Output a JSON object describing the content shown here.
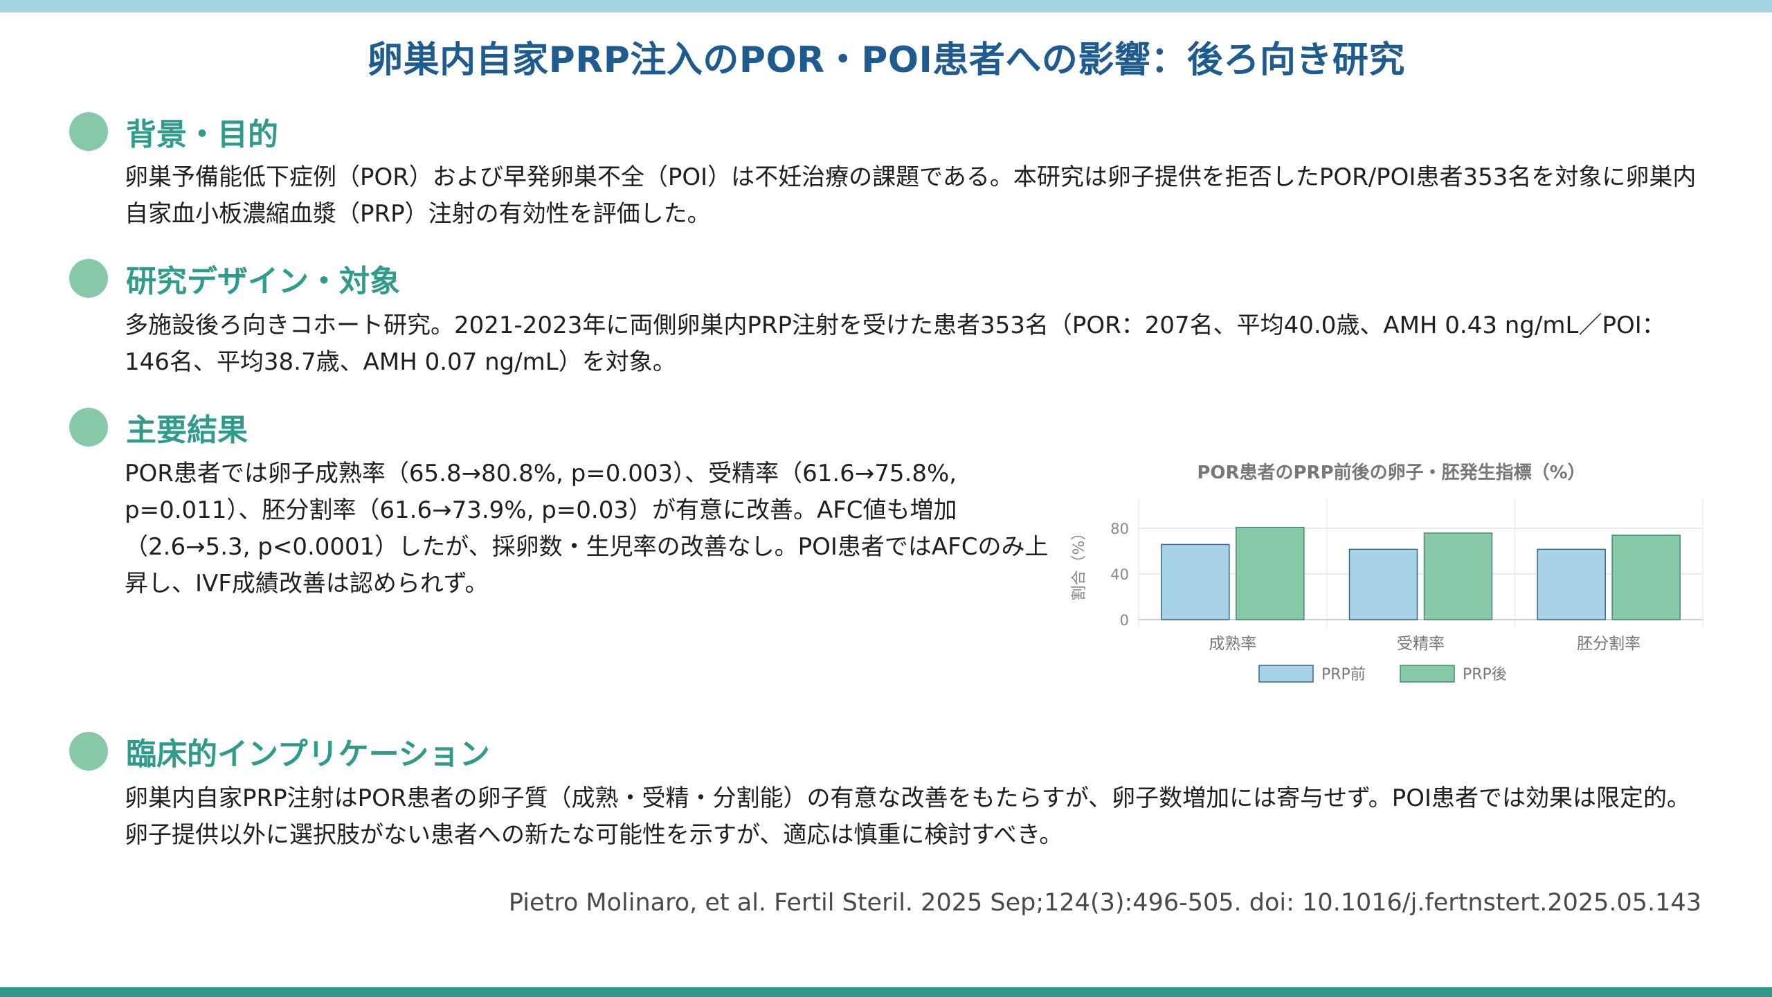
{
  "title": "卵巣内自家PRP注入のPOR・POI患者への影響：後ろ向き研究",
  "sections": {
    "background": {
      "heading": "背景・目的",
      "text": "卵巣予備能低下症例（POR）および早発卵巣不全（POI）は不妊治療の課題である。本研究は卵子提供を拒否したPOR/POI患者353名を対象に卵巣内自家血小板濃縮血漿（PRP）注射の有効性を評価した。"
    },
    "design": {
      "heading": "研究デザイン・対象",
      "text": "多施設後ろ向きコホート研究。2021-2023年に両側卵巣内PRP注射を受けた患者353名（POR：207名、平均40.0歳、AMH 0.43 ng/mL／POI：146名、平均38.7歳、AMH 0.07 ng/mL）を対象。"
    },
    "results": {
      "heading": "主要結果",
      "text": "POR患者では卵子成熟率（65.8→80.8%, p=0.003）、受精率（61.6→75.8%, p=0.011）、胚分割率（61.6→73.9%, p=0.03）が有意に改善。AFC値も増加（2.6→5.3, p<0.0001）したが、採卵数・生児率の改善なし。POI患者ではAFCのみ上昇し、IVF成績改善は認められず。"
    },
    "implications": {
      "heading": "臨床的インプリケーション",
      "text": "卵巣内自家PRP注射はPOR患者の卵子質（成熟・受精・分割能）の有意な改善をもたらすが、卵子数増加には寄与せず。POI患者では効果は限定的。卵子提供以外に選択肢がない患者への新たな可能性を示すが、適応は慎重に検討すべき。"
    }
  },
  "citation": "Pietro Molinaro, et al. Fertil Steril. 2025 Sep;124(3):496-505. doi: 10.1016/j.fertnstert.2025.05.143",
  "colors": {
    "title": "#1e5b8f",
    "section_heading": "#2f9b8a",
    "bullet": "#86c8a8",
    "top_bar": "#a6d3e3",
    "bottom_bar": "#2b9a8a",
    "series_before": "#a8d3e6",
    "series_after": "#86c8a8"
  },
  "chart_data": {
    "type": "bar",
    "title": "POR患者のPRP前後の卵子・胚発生指標（%）",
    "ylabel": "割合（%）",
    "xlabel": "",
    "categories": [
      "成熟率",
      "受精率",
      "胚分割率"
    ],
    "series": [
      {
        "name": "PRP前",
        "values": [
          65.8,
          61.6,
          61.6
        ]
      },
      {
        "name": "PRP後",
        "values": [
          80.8,
          75.8,
          73.9
        ]
      }
    ],
    "ylim": [
      0,
      100
    ],
    "yticks": [
      0,
      40,
      80
    ],
    "grid": true,
    "legend": "bottom"
  }
}
